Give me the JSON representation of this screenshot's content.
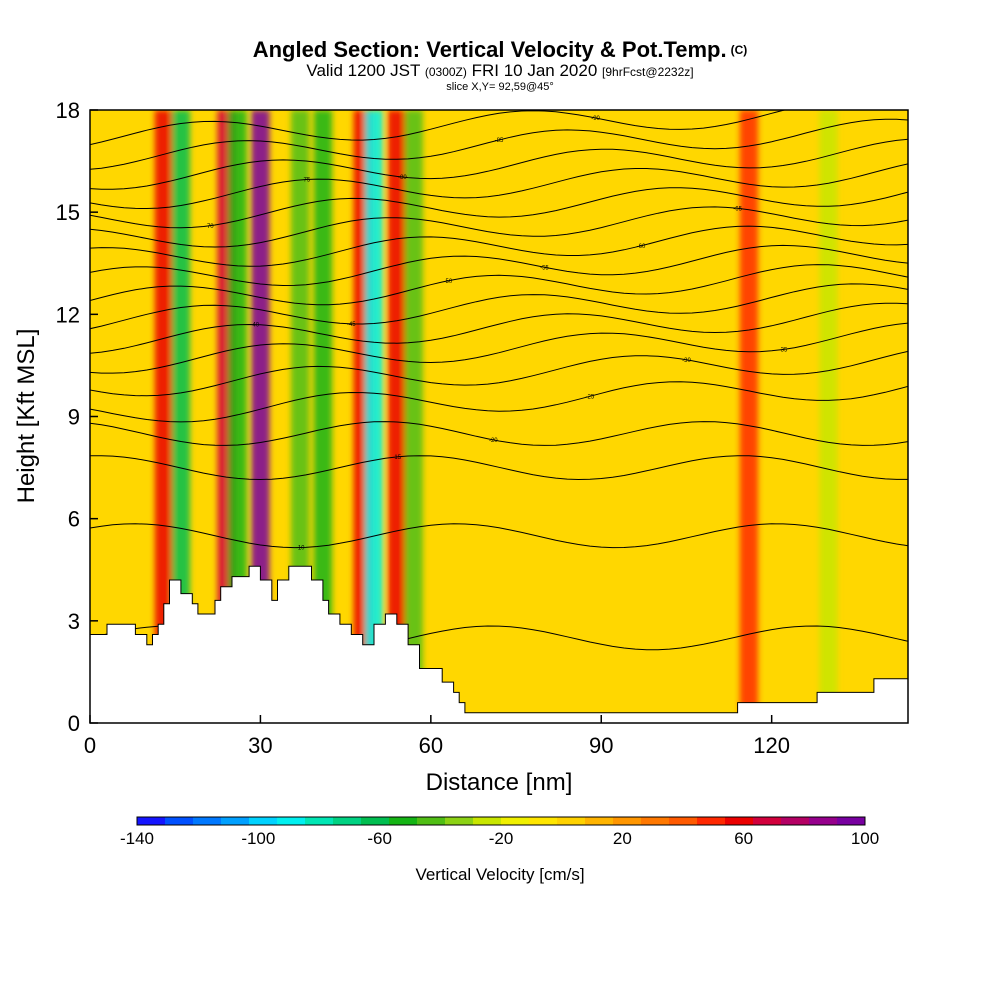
{
  "chart_data": {
    "type": "heatmap",
    "title": "Angled Section: Vertical Velocity & Pot.Temp.",
    "title_tag": "(C)",
    "subtitle_main": "Valid 1200 JST",
    "subtitle_utc": "(0300Z)",
    "subtitle_date": "FRI 10 Jan 2020",
    "subtitle_fcst": "[9hrFcst@2232z]",
    "slice_text": "slice X,Y= 92,59@45°",
    "xlabel": "Distance [nm]",
    "ylabel": "Height [Kft MSL]",
    "xlim": [
      0,
      144
    ],
    "ylim": [
      0,
      18
    ],
    "x_ticks": [
      "0",
      "30",
      "60",
      "90",
      "120"
    ],
    "x_tick_values": [
      0,
      30,
      60,
      90,
      120
    ],
    "y_ticks": [
      "0",
      "3",
      "6",
      "9",
      "12",
      "15",
      "18"
    ],
    "y_tick_values": [
      0,
      3,
      6,
      9,
      12,
      15,
      18
    ],
    "colorbar": {
      "title": "Vertical Velocity [cm/s]",
      "labels": [
        "-140",
        "-100",
        "-60",
        "-20",
        "20",
        "60",
        "100"
      ],
      "min": -140,
      "max": 100,
      "colors": [
        "#1414ff",
        "#0050ff",
        "#0078ff",
        "#00a0ff",
        "#00d2ff",
        "#00f0f0",
        "#00e6b4",
        "#00d282",
        "#00be50",
        "#14b414",
        "#50be14",
        "#8cd214",
        "#c8e600",
        "#f0f000",
        "#ffe600",
        "#ffd200",
        "#ffb400",
        "#ff9600",
        "#ff7800",
        "#ff5a00",
        "#ff2800",
        "#eb0000",
        "#d2003c",
        "#b40064",
        "#96008c",
        "#7800a0"
      ]
    },
    "features": [
      {
        "x": 13,
        "value": 60
      },
      {
        "x": 16,
        "value": -60
      },
      {
        "x": 24,
        "value": 70
      },
      {
        "x": 26,
        "value": -50
      },
      {
        "x": 30,
        "value": 95
      },
      {
        "x": 37,
        "value": -40
      },
      {
        "x": 41,
        "value": -50
      },
      {
        "x": 48,
        "value": 60
      },
      {
        "x": 50,
        "value": -90
      },
      {
        "x": 54,
        "value": 60
      },
      {
        "x": 57,
        "value": -40
      },
      {
        "x": 116,
        "value": 50
      },
      {
        "x": 130,
        "value": -25
      }
    ],
    "contours": [
      {
        "y0": 2.5,
        "label": "-5"
      },
      {
        "y0": 5.5,
        "label": "-10"
      },
      {
        "y0": 7.5,
        "label": "-15"
      },
      {
        "y0": 8.5,
        "label": "-20"
      },
      {
        "y0": 9.5,
        "label": "-25"
      },
      {
        "y0": 10.3,
        "label": "-30"
      },
      {
        "y0": 11.0,
        "label": "-35"
      },
      {
        "y0": 11.6,
        "label": "-40"
      },
      {
        "y0": 12.2,
        "label": "-45"
      },
      {
        "y0": 12.8,
        "label": "-50"
      },
      {
        "y0": 13.4,
        "label": "-55"
      },
      {
        "y0": 14.0,
        "label": "-60"
      },
      {
        "y0": 14.6,
        "label": "-65"
      },
      {
        "y0": 15.2,
        "label": "-70"
      },
      {
        "y0": 15.8,
        "label": "-75"
      },
      {
        "y0": 16.4,
        "label": "-80"
      },
      {
        "y0": 17.0,
        "label": "-85"
      },
      {
        "y0": 17.6,
        "label": "-90"
      }
    ],
    "terrain": [
      [
        0,
        2.6
      ],
      [
        3,
        2.6
      ],
      [
        3,
        2.9
      ],
      [
        8,
        2.9
      ],
      [
        8,
        2.6
      ],
      [
        10,
        2.6
      ],
      [
        10,
        2.3
      ],
      [
        11,
        2.3
      ],
      [
        11,
        2.6
      ],
      [
        12,
        2.6
      ],
      [
        12,
        2.9
      ],
      [
        13,
        2.9
      ],
      [
        13,
        3.5
      ],
      [
        14,
        3.5
      ],
      [
        14,
        4.2
      ],
      [
        16,
        4.2
      ],
      [
        16,
        3.8
      ],
      [
        18,
        3.8
      ],
      [
        18,
        3.5
      ],
      [
        19,
        3.5
      ],
      [
        19,
        3.2
      ],
      [
        22,
        3.2
      ],
      [
        22,
        3.6
      ],
      [
        23,
        3.6
      ],
      [
        23,
        4.0
      ],
      [
        25,
        4.0
      ],
      [
        25,
        4.3
      ],
      [
        28,
        4.3
      ],
      [
        28,
        4.6
      ],
      [
        30,
        4.6
      ],
      [
        30,
        4.2
      ],
      [
        32,
        4.2
      ],
      [
        32,
        3.6
      ],
      [
        33,
        3.6
      ],
      [
        33,
        4.2
      ],
      [
        35,
        4.2
      ],
      [
        35,
        4.6
      ],
      [
        39,
        4.6
      ],
      [
        39,
        4.2
      ],
      [
        41,
        4.2
      ],
      [
        41,
        3.6
      ],
      [
        42,
        3.6
      ],
      [
        42,
        3.2
      ],
      [
        44,
        3.2
      ],
      [
        44,
        2.9
      ],
      [
        46,
        2.9
      ],
      [
        46,
        2.6
      ],
      [
        48,
        2.6
      ],
      [
        48,
        2.3
      ],
      [
        50,
        2.3
      ],
      [
        50,
        2.9
      ],
      [
        52,
        2.9
      ],
      [
        52,
        3.2
      ],
      [
        54,
        3.2
      ],
      [
        54,
        2.9
      ],
      [
        56,
        2.9
      ],
      [
        56,
        2.3
      ],
      [
        58,
        2.3
      ],
      [
        58,
        1.6
      ],
      [
        62,
        1.6
      ],
      [
        62,
        1.2
      ],
      [
        64,
        1.2
      ],
      [
        64,
        0.9
      ],
      [
        65,
        0.9
      ],
      [
        65,
        0.6
      ],
      [
        66,
        0.6
      ],
      [
        66,
        0.3
      ],
      [
        68,
        0.3
      ],
      [
        68,
        0.3
      ],
      [
        114,
        0.3
      ],
      [
        114,
        0.6
      ],
      [
        128,
        0.6
      ],
      [
        128,
        0.9
      ],
      [
        138,
        0.9
      ],
      [
        138,
        1.3
      ],
      [
        144,
        1.3
      ],
      [
        144,
        0
      ],
      [
        0,
        0
      ]
    ]
  }
}
